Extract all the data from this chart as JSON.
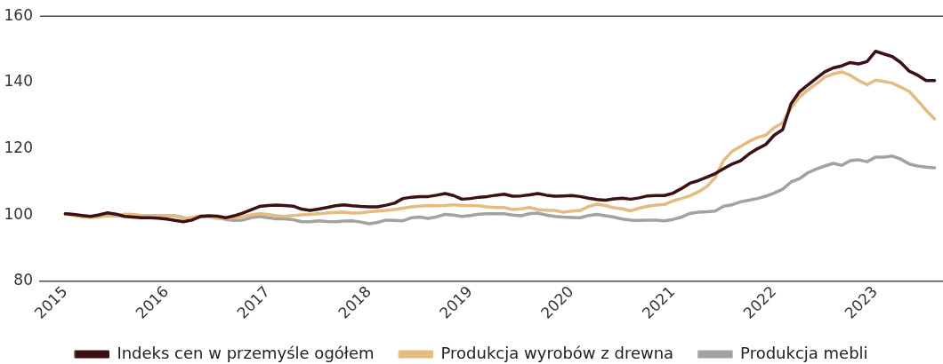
{
  "chart_data": {
    "type": "line",
    "x": [
      "2015-01",
      "2015-02",
      "2015-03",
      "2015-04",
      "2015-05",
      "2015-06",
      "2015-07",
      "2015-08",
      "2015-09",
      "2015-10",
      "2015-11",
      "2015-12",
      "2016-01",
      "2016-02",
      "2016-03",
      "2016-04",
      "2016-05",
      "2016-06",
      "2016-07",
      "2016-08",
      "2016-09",
      "2016-10",
      "2016-11",
      "2016-12",
      "2017-01",
      "2017-02",
      "2017-03",
      "2017-04",
      "2017-05",
      "2017-06",
      "2017-07",
      "2017-08",
      "2017-09",
      "2017-10",
      "2017-11",
      "2017-12",
      "2018-01",
      "2018-02",
      "2018-03",
      "2018-04",
      "2018-05",
      "2018-06",
      "2018-07",
      "2018-08",
      "2018-09",
      "2018-10",
      "2018-11",
      "2018-12",
      "2019-01",
      "2019-02",
      "2019-03",
      "2019-04",
      "2019-05",
      "2019-06",
      "2019-07",
      "2019-08",
      "2019-09",
      "2019-10",
      "2019-11",
      "2019-12",
      "2020-01",
      "2020-02",
      "2020-03",
      "2020-04",
      "2020-05",
      "2020-06",
      "2020-07",
      "2020-08",
      "2020-09",
      "2020-10",
      "2020-11",
      "2020-12",
      "2021-01",
      "2021-02",
      "2021-03",
      "2021-04",
      "2021-05",
      "2021-06",
      "2021-07",
      "2021-08",
      "2021-09",
      "2021-10",
      "2021-11",
      "2021-12",
      "2022-01",
      "2022-02",
      "2022-03",
      "2022-04",
      "2022-05",
      "2022-06",
      "2022-07",
      "2022-08",
      "2022-09",
      "2022-10",
      "2022-11",
      "2022-12",
      "2023-01",
      "2023-02",
      "2023-03",
      "2023-04",
      "2023-05",
      "2023-06",
      "2023-07",
      "2023-08"
    ],
    "series": [
      {
        "name": "Indeks cen w przemyśle ogółem",
        "color": "#3c1114",
        "values": [
          100.4,
          100.2,
          99.9,
          99.6,
          100.1,
          100.7,
          100.3,
          99.6,
          99.4,
          99.2,
          99.2,
          99.1,
          98.8,
          98.4,
          98.0,
          98.5,
          99.6,
          99.8,
          99.7,
          99.2,
          99.8,
          100.6,
          101.6,
          102.6,
          102.9,
          103.0,
          102.9,
          102.7,
          101.8,
          101.4,
          101.8,
          102.3,
          102.8,
          103.1,
          102.8,
          102.6,
          102.5,
          102.5,
          103.0,
          103.6,
          105.0,
          105.4,
          105.6,
          105.6,
          106.0,
          106.5,
          105.9,
          104.8,
          105.0,
          105.4,
          105.6,
          106.0,
          106.3,
          105.7,
          105.8,
          106.1,
          106.5,
          106.0,
          105.7,
          105.8,
          105.9,
          105.6,
          105.1,
          104.7,
          104.5,
          104.9,
          105.1,
          104.8,
          105.2,
          105.8,
          105.9,
          105.9,
          106.6,
          108.0,
          109.6,
          110.4,
          111.4,
          112.5,
          114.0,
          115.4,
          116.4,
          118.4,
          120.0,
          121.3,
          124.1,
          125.8,
          133.6,
          137.2,
          139.3,
          141.3,
          143.2,
          144.4,
          145.0,
          146.0,
          145.6,
          146.3,
          149.4,
          148.6,
          147.8,
          146.0,
          143.4,
          142.2,
          140.6,
          140.6
        ]
      },
      {
        "name": "Produkcja wyrobów z drewna",
        "color": "#e5bb82",
        "values": [
          100.4,
          99.9,
          99.5,
          99.3,
          99.5,
          99.8,
          99.9,
          100.3,
          100.2,
          99.9,
          99.8,
          99.8,
          99.8,
          99.7,
          99.0,
          99.3,
          99.8,
          99.5,
          99.0,
          99.0,
          99.2,
          99.5,
          100.1,
          100.4,
          100.2,
          99.8,
          99.6,
          99.9,
          100.1,
          100.2,
          100.4,
          100.6,
          100.8,
          100.9,
          100.6,
          100.7,
          101.0,
          101.2,
          101.4,
          101.7,
          102.1,
          102.5,
          102.7,
          102.9,
          102.8,
          102.9,
          103.1,
          102.9,
          102.9,
          102.8,
          102.5,
          102.3,
          102.3,
          101.7,
          101.9,
          102.3,
          101.7,
          101.5,
          101.4,
          100.9,
          101.2,
          101.4,
          102.6,
          103.3,
          102.9,
          102.2,
          101.9,
          101.3,
          102.1,
          102.7,
          103.0,
          103.2,
          104.3,
          105.0,
          105.8,
          107.0,
          108.6,
          111.3,
          116.5,
          119.2,
          120.7,
          122.2,
          123.4,
          124.1,
          126.4,
          127.8,
          132.3,
          135.6,
          137.8,
          139.6,
          141.6,
          142.6,
          143.2,
          142.2,
          140.6,
          139.3,
          140.7,
          140.3,
          139.8,
          138.6,
          137.3,
          134.5,
          131.6,
          129.0
        ]
      },
      {
        "name": "Produkcja mebli",
        "color": "#a2a2a2",
        "values": [
          100.4,
          100.0,
          99.7,
          99.6,
          99.7,
          99.8,
          99.8,
          99.9,
          99.9,
          99.8,
          99.8,
          99.8,
          99.8,
          99.8,
          99.2,
          98.8,
          99.6,
          99.5,
          99.2,
          98.7,
          98.4,
          98.5,
          99.2,
          99.6,
          99.2,
          98.9,
          98.9,
          98.6,
          98.0,
          98.0,
          98.3,
          98.1,
          98.0,
          98.2,
          98.3,
          97.9,
          97.4,
          97.8,
          98.5,
          98.4,
          98.3,
          99.2,
          99.4,
          99.0,
          99.5,
          100.2,
          100.0,
          99.6,
          99.9,
          100.3,
          100.4,
          100.4,
          100.4,
          100.0,
          99.8,
          100.4,
          100.6,
          100.0,
          99.6,
          99.4,
          99.3,
          99.2,
          99.9,
          100.2,
          99.8,
          99.4,
          98.8,
          98.5,
          98.4,
          98.5,
          98.5,
          98.3,
          98.7,
          99.4,
          100.5,
          100.9,
          101.0,
          101.2,
          102.7,
          103.1,
          104.0,
          104.5,
          105.0,
          105.7,
          106.7,
          107.8,
          110.0,
          111.0,
          112.8,
          113.9,
          114.8,
          115.6,
          115.0,
          116.4,
          116.7,
          116.1,
          117.5,
          117.5,
          117.8,
          116.9,
          115.4,
          114.8,
          114.5,
          114.3
        ]
      }
    ],
    "xlim": [
      "2014-10",
      "2023-09"
    ],
    "xticks": [
      "2015",
      "2016",
      "2017",
      "2018",
      "2019",
      "2020",
      "2021",
      "2022",
      "2023"
    ],
    "ylim": [
      80,
      160
    ],
    "yticks": [
      80,
      100,
      120,
      140,
      160
    ],
    "legend": "bottom"
  }
}
